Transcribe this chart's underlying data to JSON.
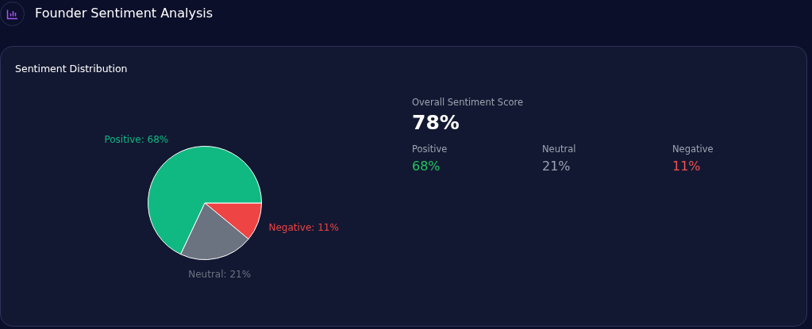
{
  "chart_data": [
    {
      "type": "pie",
      "title": "Founder Sentiment Analysis",
      "subtitle": "Sentiment Distribution",
      "categories": [
        "Negative",
        "Neutral",
        "Positive"
      ],
      "values": [
        11,
        21,
        68
      ],
      "colors": [
        "#ef4444",
        "#6b7280",
        "#10b981"
      ],
      "value_labels": [
        "11%",
        "21%",
        "68%"
      ]
    },
    {
      "type": "other",
      "title": "Overall Sentiment Score",
      "annotations": [
        "78%"
      ],
      "categories": [
        "Positive",
        "Neutral",
        "Negative"
      ],
      "values": [
        68,
        21,
        11
      ],
      "value_labels": [
        "68%",
        "21%",
        "11%"
      ],
      "colors": [
        "#22c55e",
        "#9ca3af",
        "#f05252"
      ]
    }
  ]
}
